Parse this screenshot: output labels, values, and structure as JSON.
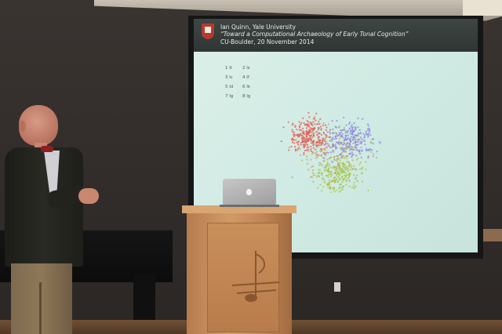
{
  "slide": {
    "header_line1": "Ian Quinn, Yale University",
    "header_line2": "“Toward a Computational Archaeology of Early Tonal Cognition”",
    "header_line3": "CU-Boulder, 20 November 2014",
    "legend": [
      "1 lt",
      "2 ls",
      "3 lc",
      "4 lf",
      "5 ld",
      "6 lk",
      "7 lg",
      "8 lg"
    ],
    "cluster_colors": [
      "#e5554f",
      "#8b86de",
      "#a6c84a",
      "#c9a35c"
    ]
  },
  "scene": {
    "colors": {
      "screen": "#d0ebe4",
      "lectern": "#c98f5b",
      "jacket": "#23231e",
      "tie": "#8c1f22",
      "wall": "#332e2b"
    },
    "icons": [
      "apple-logo-icon",
      "university-shield-icon",
      "music-note-emblem-icon"
    ]
  }
}
